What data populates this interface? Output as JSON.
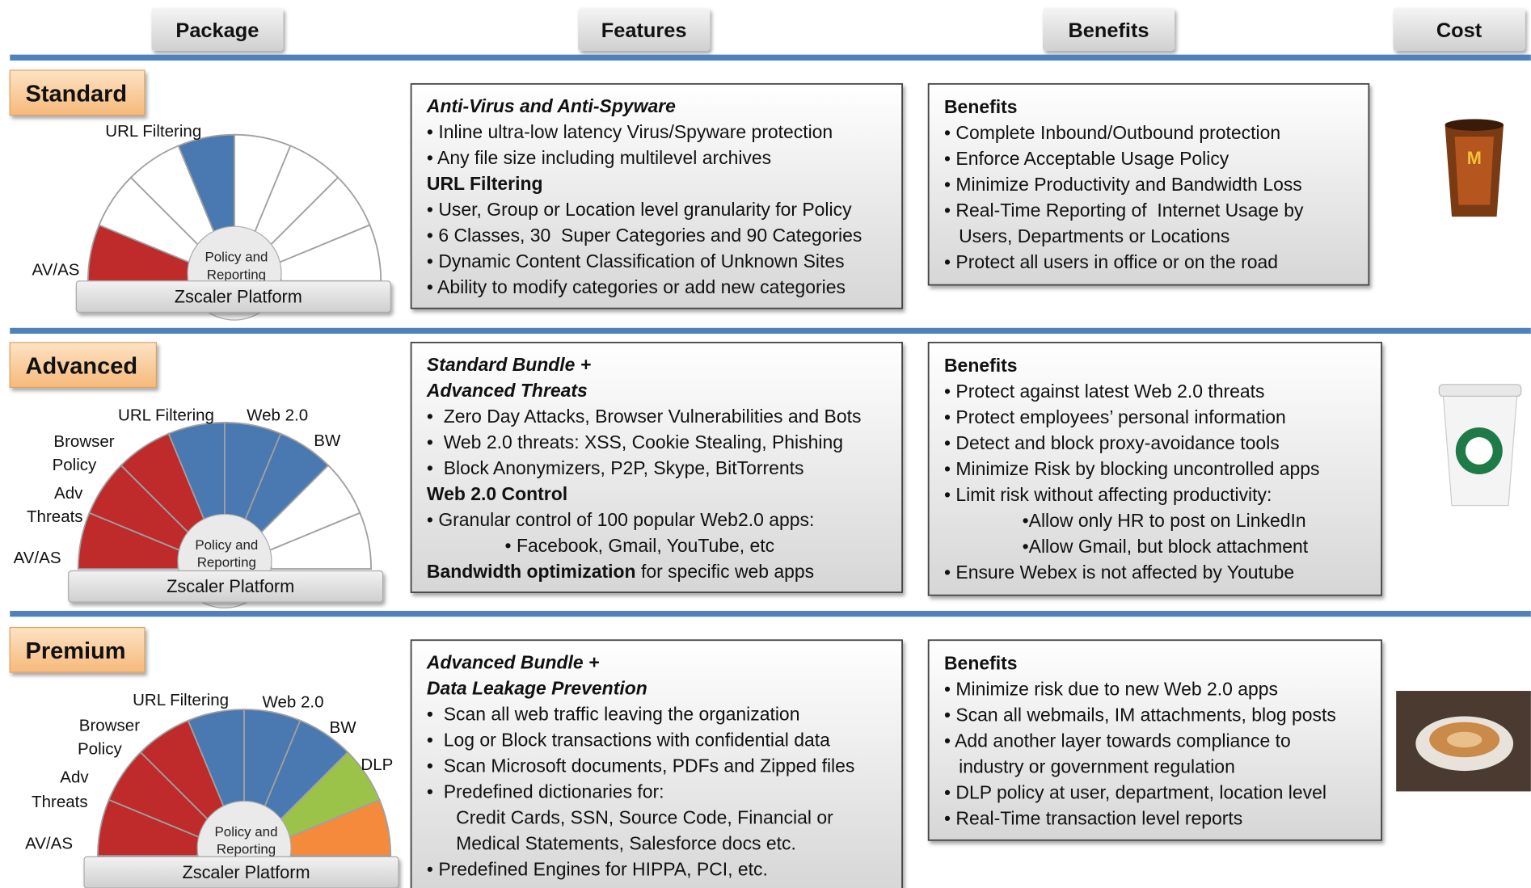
{
  "header": {
    "columns": [
      "Package",
      "Features",
      "Benefits",
      "Cost"
    ]
  },
  "rows": [
    {
      "package": "Standard",
      "gauge": {
        "labels": [
          "URL Filtering",
          "AV/AS"
        ],
        "center": [
          "Policy and",
          "Reporting"
        ],
        "platform": "Zscaler Platform",
        "colors": [
          "#bf2a2a",
          "#ffffff",
          "#ffffff",
          "#4a78b0",
          "#ffffff",
          "#ffffff",
          "#ffffff",
          "#ffffff"
        ]
      },
      "features": [
        {
          "text": "Anti-Virus and Anti-Spyware",
          "style": "bold-italic"
        },
        {
          "text": "• Inline ultra-low latency Virus/Spyware protection",
          "style": "plain"
        },
        {
          "text": "• Any file size including multilevel archives",
          "style": "plain"
        },
        {
          "text": "URL Filtering",
          "style": "bold"
        },
        {
          "text": "• User, Group or Location level granularity for Policy",
          "style": "plain"
        },
        {
          "text": "• 6 Classes, 30  Super Categories and 90 Categories",
          "style": "plain"
        },
        {
          "text": "• Dynamic Content Classification of Unknown Sites",
          "style": "plain"
        },
        {
          "text": "• Ability to modify categories or add new categories",
          "style": "plain"
        }
      ],
      "benefits": [
        {
          "text": "Benefits",
          "style": "bold"
        },
        {
          "text": "• Complete Inbound/Outbound protection",
          "style": "plain"
        },
        {
          "text": "• Enforce Acceptable Usage Policy",
          "style": "plain"
        },
        {
          "text": "• Minimize Productivity and Bandwidth Loss",
          "style": "plain"
        },
        {
          "text": "• Real-Time Reporting of  Internet Usage by",
          "style": "plain"
        },
        {
          "text": "Users, Departments or Locations",
          "style": "indent-small"
        },
        {
          "text": "• Protect all users in office or on the road",
          "style": "plain"
        }
      ]
    },
    {
      "package": "Advanced",
      "gauge": {
        "labels": [
          "URL Filtering",
          "Web 2.0",
          "BW",
          "Browser",
          "Policy",
          "Adv",
          "Threats",
          "AV/AS"
        ],
        "center": [
          "Policy and",
          "Reporting"
        ],
        "platform": "Zscaler Platform",
        "colors": [
          "#bf2a2a",
          "#bf2a2a",
          "#bf2a2a",
          "#4a78b0",
          "#4a78b0",
          "#4a78b0",
          "#ffffff",
          "#ffffff"
        ]
      },
      "features": [
        {
          "text": "Standard Bundle +",
          "style": "bold-italic"
        },
        {
          "text": "Advanced Threats",
          "style": "bold-italic"
        },
        {
          "text": "•  Zero Day Attacks, Browser Vulnerabilities and Bots",
          "style": "plain"
        },
        {
          "text": "•  Web 2.0 threats: XSS, Cookie Stealing, Phishing",
          "style": "plain"
        },
        {
          "text": "•  Block Anonymizers, P2P, Skype, BitTorrents",
          "style": "plain"
        },
        {
          "text": "Web 2.0 Control",
          "style": "bold"
        },
        {
          "text": "• Granular control of 100 popular Web2.0 apps:",
          "style": "plain"
        },
        {
          "text": "• Facebook, Gmail, YouTube, etc",
          "style": "indent-deep"
        },
        {
          "text": "Bandwidth optimization",
          "tail": " for specific web apps",
          "style": "bold"
        }
      ],
      "benefits": [
        {
          "text": "Benefits",
          "style": "bold"
        },
        {
          "text": "• Protect against latest Web 2.0 threats",
          "style": "plain"
        },
        {
          "text": "• Protect employees’ personal information",
          "style": "plain"
        },
        {
          "text": "• Detect and block proxy-avoidance tools",
          "style": "plain"
        },
        {
          "text": "• Minimize Risk by blocking uncontrolled apps",
          "style": "plain"
        },
        {
          "text": "• Limit risk without affecting productivity:",
          "style": "plain"
        },
        {
          "text": "•Allow only HR to post on LinkedIn",
          "style": "indent-deep"
        },
        {
          "text": "•Allow Gmail, but block attachment",
          "style": "indent-deep"
        },
        {
          "text": "• Ensure Webex is not affected by Youtube",
          "style": "plain"
        }
      ]
    },
    {
      "package": "Premium",
      "gauge": {
        "labels": [
          "URL Filtering",
          "Web 2.0",
          "BW",
          "DLP",
          "Browser",
          "Policy",
          "Adv",
          "Threats",
          "AV/AS"
        ],
        "center": [
          "Policy and",
          "Reporting"
        ],
        "platform": "Zscaler Platform",
        "colors": [
          "#bf2a2a",
          "#bf2a2a",
          "#bf2a2a",
          "#4a78b0",
          "#4a78b0",
          "#4a78b0",
          "#9bc34a",
          "#f58a3c"
        ]
      },
      "features": [
        {
          "text": "Advanced Bundle +",
          "style": "bold-italic"
        },
        {
          "text": "Data Leakage Prevention",
          "style": "bold-italic"
        },
        {
          "text": "•  Scan all web traffic leaving the organization",
          "style": "plain"
        },
        {
          "text": "•  Log or Block transactions with confidential data",
          "style": "plain"
        },
        {
          "text": "•  Scan Microsoft documents, PDFs and Zipped files",
          "style": "plain"
        },
        {
          "text": "•  Predefined dictionaries for:",
          "style": "plain"
        },
        {
          "text": "Credit Cards, SSN, Source Code, Financial or",
          "style": "indent"
        },
        {
          "text": "Medical Statements, Salesforce docs etc.",
          "style": "indent"
        },
        {
          "text": "• Predefined Engines for HIPPA, PCI, etc.",
          "style": "plain"
        }
      ],
      "benefits": [
        {
          "text": "Benefits",
          "style": "bold"
        },
        {
          "text": "• Minimize risk due to new Web 2.0 apps",
          "style": "plain"
        },
        {
          "text": "• Scan all webmails, IM attachments, blog posts",
          "style": "plain"
        },
        {
          "text": "• Add another layer towards compliance to",
          "style": "plain"
        },
        {
          "text": "industry or government regulation",
          "style": "indent-small"
        },
        {
          "text": "• DLP policy at user, department, location level",
          "style": "plain"
        },
        {
          "text": "• Real-Time transaction level reports",
          "style": "plain"
        }
      ]
    }
  ]
}
